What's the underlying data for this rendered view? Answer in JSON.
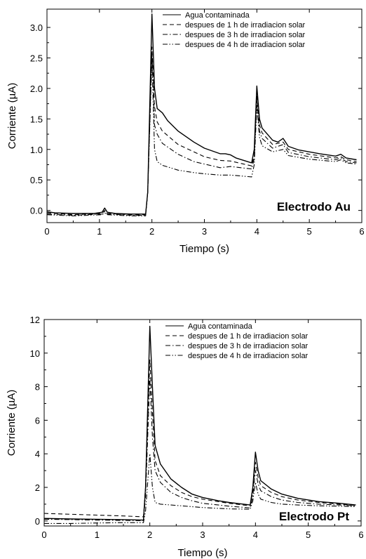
{
  "chart_data": [
    {
      "type": "line",
      "title": "",
      "xlabel": "Tiempo (s)",
      "ylabel": "Corriente (µA)",
      "xlim": [
        0,
        6
      ],
      "ylim": [
        -0.2,
        3.3
      ],
      "xticks": [
        "0",
        "1",
        "2",
        "3",
        "4",
        "5",
        "6"
      ],
      "yticks": [
        "0.0",
        "0.5",
        "1.0",
        "1.5",
        "2.0",
        "2.5",
        "3.0"
      ],
      "annotation": "Electrodo Au",
      "legend_position": "top-right",
      "grid": false,
      "series": [
        {
          "name": "Agua contaminada",
          "style": "solid",
          "points": [
            [
              0,
              -0.02
            ],
            [
              0.15,
              -0.04
            ],
            [
              0.5,
              -0.05
            ],
            [
              0.9,
              -0.05
            ],
            [
              1.05,
              -0.03
            ],
            [
              1.1,
              0.04
            ],
            [
              1.15,
              -0.03
            ],
            [
              1.3,
              -0.05
            ],
            [
              1.6,
              -0.06
            ],
            [
              1.88,
              -0.06
            ],
            [
              1.92,
              0.3
            ],
            [
              2.0,
              3.22
            ],
            [
              2.05,
              2.0
            ],
            [
              2.1,
              1.67
            ],
            [
              2.2,
              1.6
            ],
            [
              2.3,
              1.47
            ],
            [
              2.5,
              1.3
            ],
            [
              2.8,
              1.12
            ],
            [
              3.0,
              1.02
            ],
            [
              3.3,
              0.93
            ],
            [
              3.4,
              0.93
            ],
            [
              3.5,
              0.91
            ],
            [
              3.6,
              0.86
            ],
            [
              3.9,
              0.78
            ],
            [
              3.95,
              1.0
            ],
            [
              4.0,
              2.04
            ],
            [
              4.05,
              1.5
            ],
            [
              4.1,
              1.35
            ],
            [
              4.3,
              1.15
            ],
            [
              4.4,
              1.12
            ],
            [
              4.5,
              1.18
            ],
            [
              4.6,
              1.05
            ],
            [
              4.8,
              0.99
            ],
            [
              5.2,
              0.93
            ],
            [
              5.5,
              0.89
            ],
            [
              5.6,
              0.92
            ],
            [
              5.7,
              0.86
            ],
            [
              5.9,
              0.83
            ]
          ]
        },
        {
          "name": "despues de 1 h de irradiacion solar",
          "style": "dashed",
          "points": [
            [
              0,
              -0.04
            ],
            [
              0.5,
              -0.07
            ],
            [
              1.05,
              -0.05
            ],
            [
              1.1,
              0.0
            ],
            [
              1.15,
              -0.05
            ],
            [
              1.6,
              -0.07
            ],
            [
              1.88,
              -0.07
            ],
            [
              1.92,
              0.3
            ],
            [
              2.0,
              2.68
            ],
            [
              2.05,
              1.7
            ],
            [
              2.1,
              1.45
            ],
            [
              2.2,
              1.3
            ],
            [
              2.5,
              1.08
            ],
            [
              2.8,
              0.96
            ],
            [
              3.0,
              0.88
            ],
            [
              3.3,
              0.82
            ],
            [
              3.5,
              0.81
            ],
            [
              3.9,
              0.73
            ],
            [
              3.95,
              0.9
            ],
            [
              4.0,
              1.9
            ],
            [
              4.05,
              1.4
            ],
            [
              4.1,
              1.27
            ],
            [
              4.3,
              1.08
            ],
            [
              4.5,
              1.12
            ],
            [
              4.6,
              1.0
            ],
            [
              5.0,
              0.92
            ],
            [
              5.5,
              0.86
            ],
            [
              5.6,
              0.88
            ],
            [
              5.7,
              0.83
            ],
            [
              5.9,
              0.8
            ]
          ]
        },
        {
          "name": "despues de 3 h de irradiacion solar",
          "style": "dashdot",
          "points": [
            [
              0,
              -0.06
            ],
            [
              0.5,
              -0.08
            ],
            [
              1.05,
              -0.06
            ],
            [
              1.1,
              -0.02
            ],
            [
              1.15,
              -0.06
            ],
            [
              1.6,
              -0.08
            ],
            [
              1.88,
              -0.08
            ],
            [
              1.92,
              0.3
            ],
            [
              2.0,
              2.6
            ],
            [
              2.05,
              1.4
            ],
            [
              2.1,
              1.25
            ],
            [
              2.2,
              1.1
            ],
            [
              2.5,
              0.92
            ],
            [
              2.8,
              0.8
            ],
            [
              3.0,
              0.76
            ],
            [
              3.3,
              0.7
            ],
            [
              3.5,
              0.72
            ],
            [
              3.9,
              0.68
            ],
            [
              3.95,
              0.85
            ],
            [
              4.0,
              1.8
            ],
            [
              4.05,
              1.3
            ],
            [
              4.1,
              1.18
            ],
            [
              4.3,
              1.02
            ],
            [
              4.5,
              1.08
            ],
            [
              4.6,
              0.95
            ],
            [
              5.0,
              0.88
            ],
            [
              5.5,
              0.83
            ],
            [
              5.6,
              0.86
            ],
            [
              5.7,
              0.8
            ],
            [
              5.9,
              0.78
            ]
          ]
        },
        {
          "name": "despues de 4 h de irradiacion solar",
          "style": "dashdotdot",
          "points": [
            [
              0,
              -0.07
            ],
            [
              0.5,
              -0.09
            ],
            [
              1.05,
              -0.07
            ],
            [
              1.1,
              -0.04
            ],
            [
              1.15,
              -0.07
            ],
            [
              1.6,
              -0.09
            ],
            [
              1.88,
              -0.09
            ],
            [
              1.92,
              0.3
            ],
            [
              2.0,
              2.5
            ],
            [
              2.05,
              1.0
            ],
            [
              2.1,
              0.8
            ],
            [
              2.2,
              0.74
            ],
            [
              2.5,
              0.66
            ],
            [
              2.8,
              0.62
            ],
            [
              3.0,
              0.6
            ],
            [
              3.3,
              0.58
            ],
            [
              3.5,
              0.58
            ],
            [
              3.9,
              0.55
            ],
            [
              3.95,
              0.75
            ],
            [
              4.0,
              1.72
            ],
            [
              4.05,
              1.2
            ],
            [
              4.1,
              1.06
            ],
            [
              4.3,
              0.96
            ],
            [
              4.5,
              1.0
            ],
            [
              4.6,
              0.9
            ],
            [
              5.0,
              0.84
            ],
            [
              5.5,
              0.8
            ],
            [
              5.6,
              0.83
            ],
            [
              5.7,
              0.78
            ],
            [
              5.9,
              0.76
            ]
          ]
        }
      ]
    },
    {
      "type": "line",
      "title": "",
      "xlabel": "Tiempo (s)",
      "ylabel": "Corriente (µA)",
      "xlim": [
        0,
        6
      ],
      "ylim": [
        -0.3,
        12
      ],
      "xticks": [
        "0",
        "1",
        "2",
        "3",
        "4",
        "5",
        "6"
      ],
      "yticks": [
        "0",
        "2",
        "4",
        "6",
        "8",
        "10",
        "12"
      ],
      "annotation": "Electrodo Pt",
      "legend_position": "top-right",
      "grid": false,
      "series": [
        {
          "name": "Agua contaminada",
          "style": "solid",
          "points": [
            [
              0,
              0.15
            ],
            [
              0.5,
              0.12
            ],
            [
              1.0,
              0.1
            ],
            [
              1.5,
              0.08
            ],
            [
              1.88,
              0.05
            ],
            [
              1.92,
              2.0
            ],
            [
              2.0,
              11.6
            ],
            [
              2.05,
              8.0
            ],
            [
              2.1,
              4.5
            ],
            [
              2.2,
              3.4
            ],
            [
              2.4,
              2.5
            ],
            [
              2.6,
              2.0
            ],
            [
              2.8,
              1.6
            ],
            [
              3.0,
              1.4
            ],
            [
              3.3,
              1.2
            ],
            [
              3.5,
              1.1
            ],
            [
              3.9,
              0.95
            ],
            [
              3.95,
              2.0
            ],
            [
              4.0,
              4.1
            ],
            [
              4.05,
              3.0
            ],
            [
              4.1,
              2.4
            ],
            [
              4.3,
              1.9
            ],
            [
              4.5,
              1.6
            ],
            [
              4.8,
              1.35
            ],
            [
              5.2,
              1.15
            ],
            [
              5.6,
              1.05
            ],
            [
              5.9,
              0.95
            ]
          ]
        },
        {
          "name": "despues de 1 h de irradiacion solar",
          "style": "dashed",
          "points": [
            [
              0,
              0.45
            ],
            [
              0.5,
              0.4
            ],
            [
              1.0,
              0.35
            ],
            [
              1.5,
              0.3
            ],
            [
              1.88,
              0.25
            ],
            [
              1.92,
              2.0
            ],
            [
              2.0,
              9.6
            ],
            [
              2.05,
              6.5
            ],
            [
              2.1,
              3.6
            ],
            [
              2.2,
              2.7
            ],
            [
              2.4,
              2.1
            ],
            [
              2.6,
              1.7
            ],
            [
              2.8,
              1.45
            ],
            [
              3.0,
              1.3
            ],
            [
              3.3,
              1.15
            ],
            [
              3.5,
              1.05
            ],
            [
              3.9,
              0.9
            ],
            [
              3.95,
              1.8
            ],
            [
              4.0,
              3.5
            ],
            [
              4.05,
              2.6
            ],
            [
              4.1,
              2.1
            ],
            [
              4.3,
              1.7
            ],
            [
              4.5,
              1.45
            ],
            [
              4.8,
              1.25
            ],
            [
              5.2,
              1.1
            ],
            [
              5.6,
              1.0
            ],
            [
              5.9,
              0.92
            ]
          ]
        },
        {
          "name": "despues de 3 h de irradiacion solar",
          "style": "dashdot",
          "points": [
            [
              0,
              0.1
            ],
            [
              0.5,
              0.08
            ],
            [
              1.0,
              0.05
            ],
            [
              1.5,
              0.03
            ],
            [
              1.88,
              0.02
            ],
            [
              1.92,
              1.5
            ],
            [
              2.0,
              8.5
            ],
            [
              2.05,
              5.0
            ],
            [
              2.1,
              3.0
            ],
            [
              2.2,
              2.3
            ],
            [
              2.4,
              1.7
            ],
            [
              2.6,
              1.4
            ],
            [
              2.8,
              1.2
            ],
            [
              3.0,
              1.05
            ],
            [
              3.3,
              0.95
            ],
            [
              3.5,
              0.88
            ],
            [
              3.9,
              0.78
            ],
            [
              3.95,
              1.5
            ],
            [
              4.0,
              3.0
            ],
            [
              4.05,
              2.2
            ],
            [
              4.1,
              1.8
            ],
            [
              4.3,
              1.45
            ],
            [
              4.5,
              1.25
            ],
            [
              4.8,
              1.1
            ],
            [
              5.2,
              1.0
            ],
            [
              5.6,
              0.95
            ],
            [
              5.9,
              0.9
            ]
          ]
        },
        {
          "name": "despues de 4 h de irradiacion solar",
          "style": "dashdotdot",
          "points": [
            [
              0,
              -0.15
            ],
            [
              0.5,
              -0.15
            ],
            [
              1.0,
              -0.12
            ],
            [
              1.5,
              -0.1
            ],
            [
              1.88,
              -0.1
            ],
            [
              1.92,
              0.6
            ],
            [
              2.0,
              4.0
            ],
            [
              2.05,
              2.0
            ],
            [
              2.1,
              1.1
            ],
            [
              2.2,
              1.0
            ],
            [
              2.4,
              0.95
            ],
            [
              2.6,
              0.9
            ],
            [
              2.8,
              0.85
            ],
            [
              3.0,
              0.8
            ],
            [
              3.3,
              0.75
            ],
            [
              3.5,
              0.72
            ],
            [
              3.9,
              0.7
            ],
            [
              3.95,
              1.2
            ],
            [
              4.0,
              2.3
            ],
            [
              4.05,
              1.6
            ],
            [
              4.1,
              1.3
            ],
            [
              4.3,
              1.1
            ],
            [
              4.5,
              1.0
            ],
            [
              4.8,
              0.95
            ],
            [
              5.2,
              0.9
            ],
            [
              5.6,
              0.88
            ],
            [
              5.9,
              0.85
            ]
          ]
        }
      ]
    }
  ]
}
